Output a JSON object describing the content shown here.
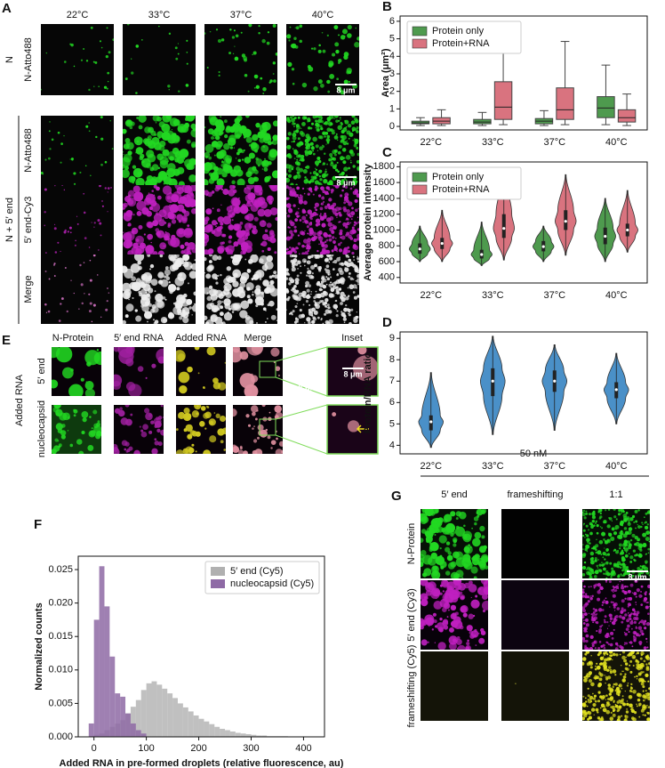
{
  "panel_a": {
    "label": "A",
    "columns": [
      "22°C",
      "33°C",
      "37°C",
      "40°C"
    ],
    "groups": [
      {
        "name": "N",
        "rows": [
          "N-Atto488"
        ]
      },
      {
        "name": "N + 5′ end",
        "rows": [
          "N-Atto488",
          "5′ end-Cy3",
          "Merge"
        ]
      }
    ],
    "scale_bars": [
      "8 μm",
      "8 μm"
    ]
  },
  "panel_e": {
    "label": "E",
    "columns": [
      "N-Protein",
      "5′ end RNA",
      "Added RNA",
      "Merge",
      "Inset"
    ],
    "group": "Added RNA",
    "rows": [
      "5′ end",
      "nucleocapsid"
    ],
    "scale_bars": [
      "8 μm",
      "8 μm"
    ]
  },
  "panel_g": {
    "label": "G",
    "concentration": "50 nM",
    "columns": [
      "5′ end",
      "frameshifting",
      "1:1"
    ],
    "rows": [
      "N-Protein",
      "5′ end (Cy3)",
      "frameshifting (Cy5)"
    ],
    "scale_bar": "8 μm"
  },
  "chart_data": [
    {
      "type": "box",
      "label": "B",
      "ylabel": "Area (μm²)",
      "categories": [
        "22°C",
        "33°C",
        "37°C",
        "40°C"
      ],
      "ylim": [
        -0.2,
        6.3
      ],
      "yticks": [
        0,
        1,
        2,
        3,
        4,
        5,
        6
      ],
      "legend": "upper left",
      "series": [
        {
          "name": "Protein only",
          "color": "#4e9a4e",
          "min": [
            0.05,
            0.05,
            0.05,
            0.1
          ],
          "q1": [
            0.15,
            0.15,
            0.15,
            0.5
          ],
          "median": [
            0.2,
            0.25,
            0.3,
            1.05
          ],
          "q3": [
            0.3,
            0.4,
            0.45,
            1.7
          ],
          "max": [
            0.5,
            0.8,
            0.9,
            3.5
          ]
        },
        {
          "name": "Protein+RNA",
          "color": "#d9737f",
          "min": [
            0.05,
            0.1,
            0.1,
            0.05
          ],
          "q1": [
            0.15,
            0.4,
            0.4,
            0.25
          ],
          "median": [
            0.3,
            1.1,
            0.95,
            0.5
          ],
          "q3": [
            0.5,
            2.55,
            2.2,
            0.95
          ],
          "max": [
            0.95,
            5.8,
            4.85,
            1.85
          ]
        }
      ]
    },
    {
      "type": "violin",
      "label": "C",
      "ylabel": "Average protein intensity",
      "categories": [
        "22°C",
        "33°C",
        "37°C",
        "40°C"
      ],
      "ylim": [
        330,
        1860
      ],
      "yticks": [
        400,
        600,
        800,
        1000,
        1200,
        1400,
        1600,
        1800
      ],
      "legend": "upper left",
      "series": [
        {
          "name": "Protein only",
          "color": "#4e9a4e",
          "min": [
            600,
            550,
            600,
            600
          ],
          "q1": [
            700,
            640,
            730,
            820
          ],
          "median": [
            760,
            690,
            790,
            920
          ],
          "q3": [
            830,
            750,
            860,
            1030
          ],
          "max": [
            1050,
            1100,
            1050,
            1400
          ]
        },
        {
          "name": "Protein+RNA",
          "color": "#d9737f",
          "min": [
            600,
            620,
            680,
            720
          ],
          "q1": [
            760,
            900,
            1000,
            920
          ],
          "median": [
            830,
            1020,
            1110,
            1000
          ],
          "q3": [
            900,
            1200,
            1250,
            1080
          ],
          "max": [
            1250,
            1750,
            1700,
            1500
          ]
        }
      ]
    },
    {
      "type": "violin",
      "label": "D",
      "ylabel": "Protein/RNA ratio",
      "categories": [
        "22°C",
        "33°C",
        "37°C",
        "40°C"
      ],
      "ylim": [
        3.6,
        9.3
      ],
      "yticks": [
        4,
        5,
        6,
        7,
        8,
        9
      ],
      "series": [
        {
          "color": "#4a90c8",
          "min": [
            3.9,
            4.5,
            4.7,
            5.0
          ],
          "q1": [
            4.7,
            6.3,
            6.5,
            6.2
          ],
          "median": [
            5.1,
            7.0,
            7.0,
            6.6
          ],
          "q3": [
            5.4,
            7.6,
            7.5,
            6.95
          ],
          "max": [
            7.4,
            9.1,
            8.7,
            8.3
          ]
        }
      ]
    },
    {
      "type": "histogram",
      "label": "F",
      "xlabel": "Added RNA in pre-formed droplets (relative fluorescence, au)",
      "ylabel": "Normalized counts",
      "xlim": [
        -30,
        440
      ],
      "xticks": [
        0,
        100,
        200,
        300,
        400
      ],
      "ylim": [
        0,
        0.027
      ],
      "yticks": [
        {
          "value": 0,
          "label": "0.000"
        },
        {
          "value": 0.005,
          "label": "0.005"
        },
        {
          "value": 0.01,
          "label": "0.010"
        },
        {
          "value": 0.015,
          "label": "0.015"
        },
        {
          "value": 0.02,
          "label": "0.020"
        },
        {
          "value": 0.025,
          "label": "0.025"
        }
      ],
      "legend": "upper right",
      "bins": [
        -10,
        0,
        10,
        20,
        30,
        40,
        50,
        60,
        70,
        80,
        90,
        100,
        110,
        120,
        130,
        140,
        150,
        160,
        170,
        180,
        190,
        200,
        210,
        220,
        230,
        240,
        250,
        260,
        270,
        280,
        290,
        300,
        310,
        320,
        330,
        340,
        350,
        360,
        370,
        380,
        390,
        400
      ],
      "series": [
        {
          "name": "5′ end (Cy5)",
          "color": "#b0b0b0",
          "values": [
            0,
            0.0003,
            0.0005,
            0.001,
            0.0015,
            0.002,
            0.0025,
            0.0035,
            0.0045,
            0.0055,
            0.007,
            0.008,
            0.0083,
            0.0078,
            0.0072,
            0.0065,
            0.0058,
            0.005,
            0.0044,
            0.0038,
            0.0032,
            0.0027,
            0.0023,
            0.0019,
            0.0015,
            0.0012,
            0.001,
            0.0008,
            0.0006,
            0.0005,
            0.0004,
            0.0003,
            0.0002,
            0.0002,
            0.0001,
            0.0001,
            0.0001,
            0.0001,
            0,
            0,
            0
          ]
        },
        {
          "name": "nucleocapsid (Cy5)",
          "color": "#8e6aa5",
          "values": [
            0.002,
            0.0175,
            0.0255,
            0.0195,
            0.012,
            0.0065,
            0.006,
            0.0035,
            0.002,
            0.001,
            0.0005,
            0,
            0,
            0,
            0,
            0,
            0,
            0,
            0,
            0,
            0,
            0,
            0,
            0,
            0,
            0,
            0,
            0,
            0,
            0,
            0,
            0,
            0,
            0,
            0,
            0,
            0,
            0,
            0,
            0,
            0
          ]
        }
      ]
    }
  ]
}
